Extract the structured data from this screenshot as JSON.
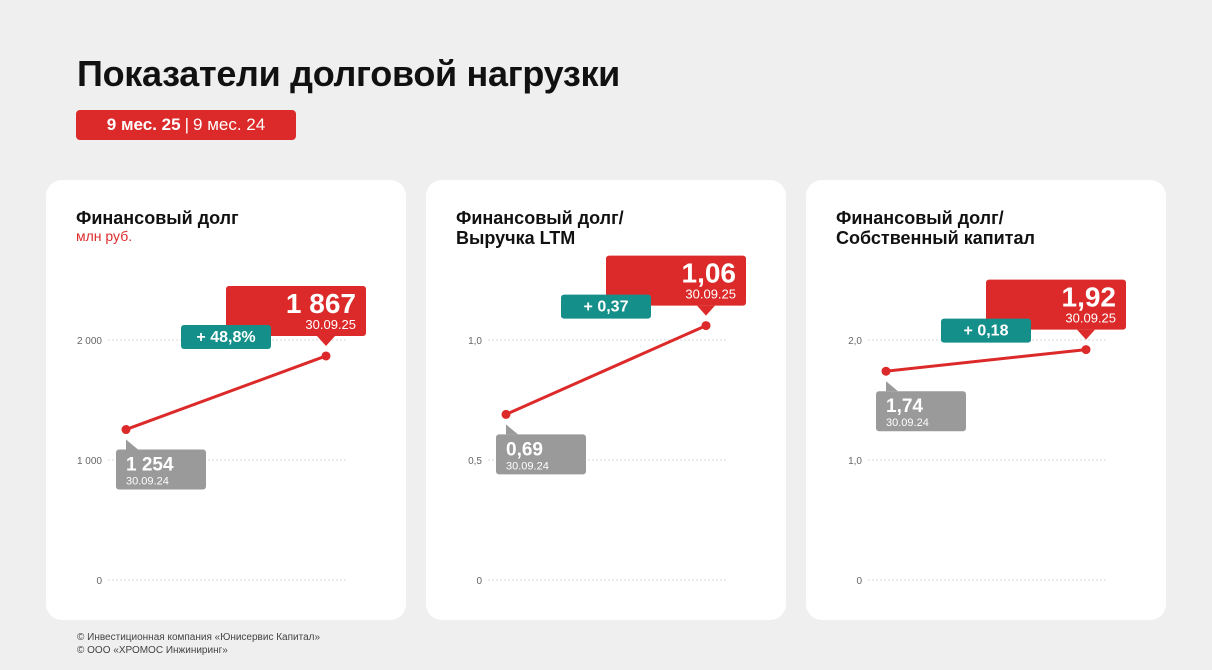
{
  "page": {
    "title": "Показатели долговой нагрузки",
    "period_current": "9 мес. 25",
    "period_separator": "|",
    "period_previous": "9 мес. 24",
    "footer_lines": [
      "© Инвестиционная компания «Юнисервис Капитал»",
      "© ООО «ХРОМОС Инжиниринг»"
    ]
  },
  "colors": {
    "accent": "#dc2a2a",
    "change": "#148f8a",
    "previous": "#9a9a9a",
    "background": "#efefef",
    "card": "#ffffff"
  },
  "chart_data": [
    {
      "type": "line",
      "title_lines": [
        "Финансовый долг"
      ],
      "subtitle": "млн руб.",
      "ylim": [
        0,
        2000
      ],
      "yticks": [
        0,
        1000,
        2000
      ],
      "ytick_labels": [
        "0",
        "1 000",
        "2 000"
      ],
      "grid": true,
      "points": [
        {
          "date": "30.09.24",
          "value": 1254,
          "label": "1 254"
        },
        {
          "date": "30.09.25",
          "value": 1867,
          "label": "1 867"
        }
      ],
      "change": "+ 48,8%"
    },
    {
      "type": "line",
      "title_lines": [
        "Финансовый долг/",
        "Выручка LTM"
      ],
      "subtitle": "",
      "ylim": [
        0,
        1.0
      ],
      "yticks": [
        0,
        0.5,
        1.0
      ],
      "ytick_labels": [
        "0",
        "0,5",
        "1,0"
      ],
      "grid": true,
      "points": [
        {
          "date": "30.09.24",
          "value": 0.69,
          "label": "0,69"
        },
        {
          "date": "30.09.25",
          "value": 1.06,
          "label": "1,06"
        }
      ],
      "change": "+ 0,37"
    },
    {
      "type": "line",
      "title_lines": [
        "Финансовый долг/",
        "Собственный капитал"
      ],
      "subtitle": "",
      "ylim": [
        0,
        2.0
      ],
      "yticks": [
        0,
        1.0,
        2.0
      ],
      "ytick_labels": [
        "0",
        "1,0",
        "2,0"
      ],
      "grid": true,
      "points": [
        {
          "date": "30.09.24",
          "value": 1.74,
          "label": "1,74"
        },
        {
          "date": "30.09.25",
          "value": 1.92,
          "label": "1,92"
        }
      ],
      "change": "+ 0,18"
    }
  ]
}
